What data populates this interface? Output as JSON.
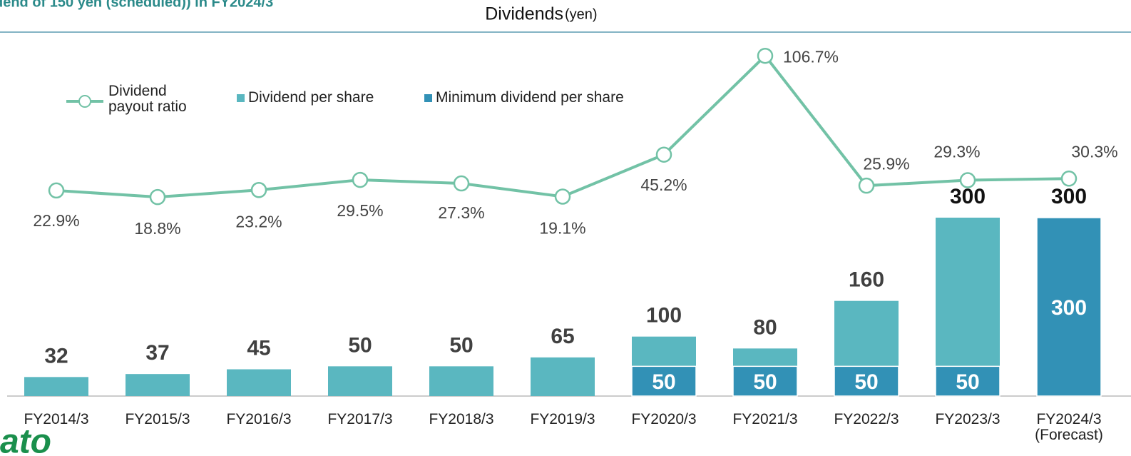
{
  "header": {
    "title": "dend of 150 yen (scheduled)) in FY2024/3",
    "logo": "ato"
  },
  "chart_data": {
    "type": "bar",
    "title": "Dividends",
    "subtitle": "(yen)",
    "categories": [
      "FY2014/3",
      "FY2015/3",
      "FY2016/3",
      "FY2017/3",
      "FY2018/3",
      "FY2019/3",
      "FY2020/3",
      "FY2021/3",
      "FY2022/3",
      "FY2023/3",
      "FY2024/3 (Forecast)"
    ],
    "ylim": [
      0,
      600
    ],
    "y2lim": [
      -105,
      117
    ],
    "series": [
      {
        "name": "Dividend per share",
        "color": "#5ab7c0",
        "values": [
          32,
          37,
          45,
          50,
          50,
          65,
          100,
          80,
          160,
          300,
          300
        ]
      },
      {
        "name": "Minimum dividend per share",
        "color": "#3291b6",
        "values": [
          null,
          null,
          null,
          null,
          null,
          null,
          50,
          50,
          50,
          50,
          300
        ]
      },
      {
        "name": "Dividend payout ratio",
        "type": "line",
        "axis": "y2",
        "color": "#72c2a6",
        "values": [
          22.9,
          18.8,
          23.2,
          29.5,
          27.3,
          19.1,
          45.2,
          106.7,
          25.9,
          29.3,
          30.3
        ],
        "value_labels": [
          "22.9%",
          "18.8%",
          "23.2%",
          "29.5%",
          "27.3%",
          "19.1%",
          "45.2%",
          "106.7%",
          "25.9%",
          "29.3%",
          "30.3%"
        ]
      }
    ]
  }
}
